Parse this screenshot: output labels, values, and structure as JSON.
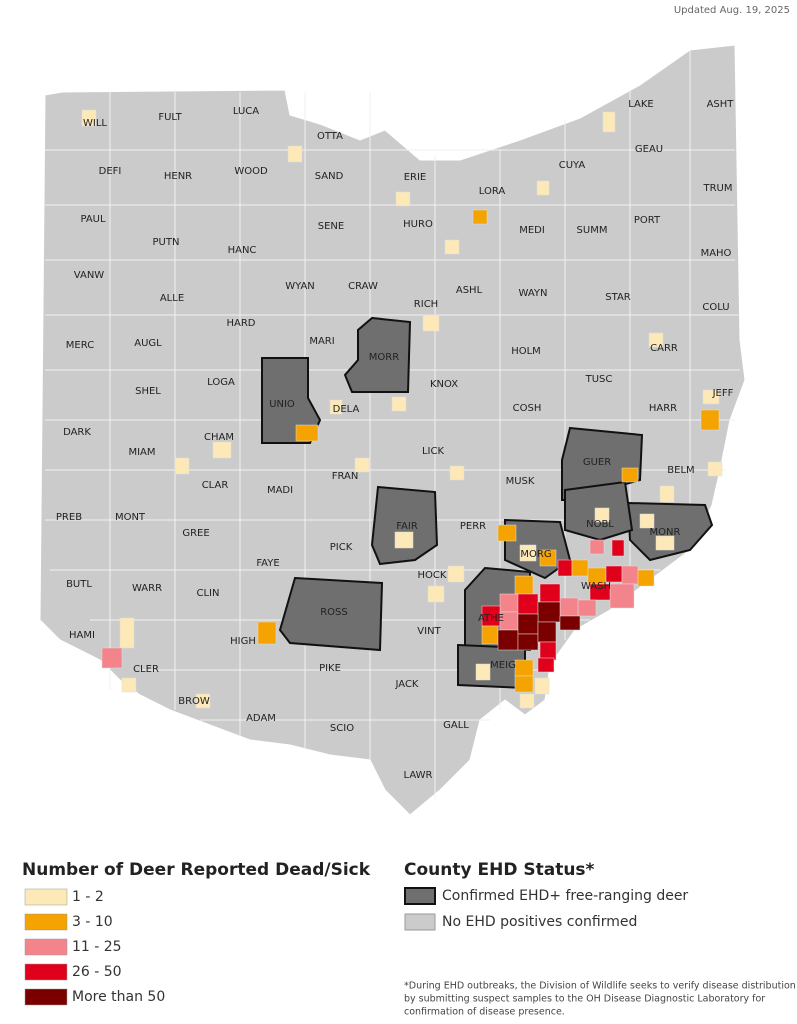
{
  "updated": "Updated Aug. 19, 2025",
  "counties": [
    "WILL",
    "FULT",
    "LUCA",
    "OTTA",
    "LAKE",
    "ASHT",
    "DEFI",
    "HENR",
    "WOOD",
    "SAND",
    "ERIE",
    "CUYA",
    "GEAU",
    "LORA",
    "TRUM",
    "PAUL",
    "PUTN",
    "HANC",
    "SENE",
    "HURO",
    "MEDI",
    "SUMM",
    "PORT",
    "MAHO",
    "VANW",
    "ALLE",
    "WYAN",
    "CRAW",
    "ASHL",
    "WAYN",
    "STAR",
    "COLU",
    "RICH",
    "HARD",
    "MERC",
    "AUGL",
    "MARI",
    "MORR",
    "HOLM",
    "CARR",
    "LOGA",
    "SHEL",
    "UNIO",
    "DELA",
    "KNOX",
    "TUSC",
    "HARR",
    "JEFF",
    "COSH",
    "DARK",
    "MIAM",
    "CHAM",
    "LICK",
    "GUER",
    "BELM",
    "MUSK",
    "CLAR",
    "FRAN",
    "MADI",
    "PREB",
    "MONT",
    "FAIR",
    "PERR",
    "NOBL",
    "MONR",
    "GREE",
    "PICK",
    "MORG",
    "FAYE",
    "HOCK",
    "WASH",
    "BUTL",
    "WARR",
    "CLIN",
    "ROSS",
    "ATHE",
    "VINT",
    "HIGH",
    "HAMI",
    "CLER",
    "PIKE",
    "MEIG",
    "JACK",
    "BROW",
    "ADAM",
    "SCIO",
    "GALL",
    "LAWR"
  ],
  "legend_deer": {
    "title": "Number of Deer Reported Dead/Sick",
    "items": [
      "1 - 2",
      "3 - 10",
      "11 - 25",
      "26 - 50",
      "More than 50"
    ]
  },
  "legend_status": {
    "title": "County EHD Status*",
    "items": [
      "Confirmed EHD+ free-ranging deer",
      "No EHD positives confirmed"
    ]
  },
  "footnote": [
    "*During EHD outbreaks, the Division of Wildlife seeks to verify disease distribution",
    "by submitting suspect samples to the OH Disease Diagnostic Laboratory for",
    "confirmation of disease presence."
  ]
}
